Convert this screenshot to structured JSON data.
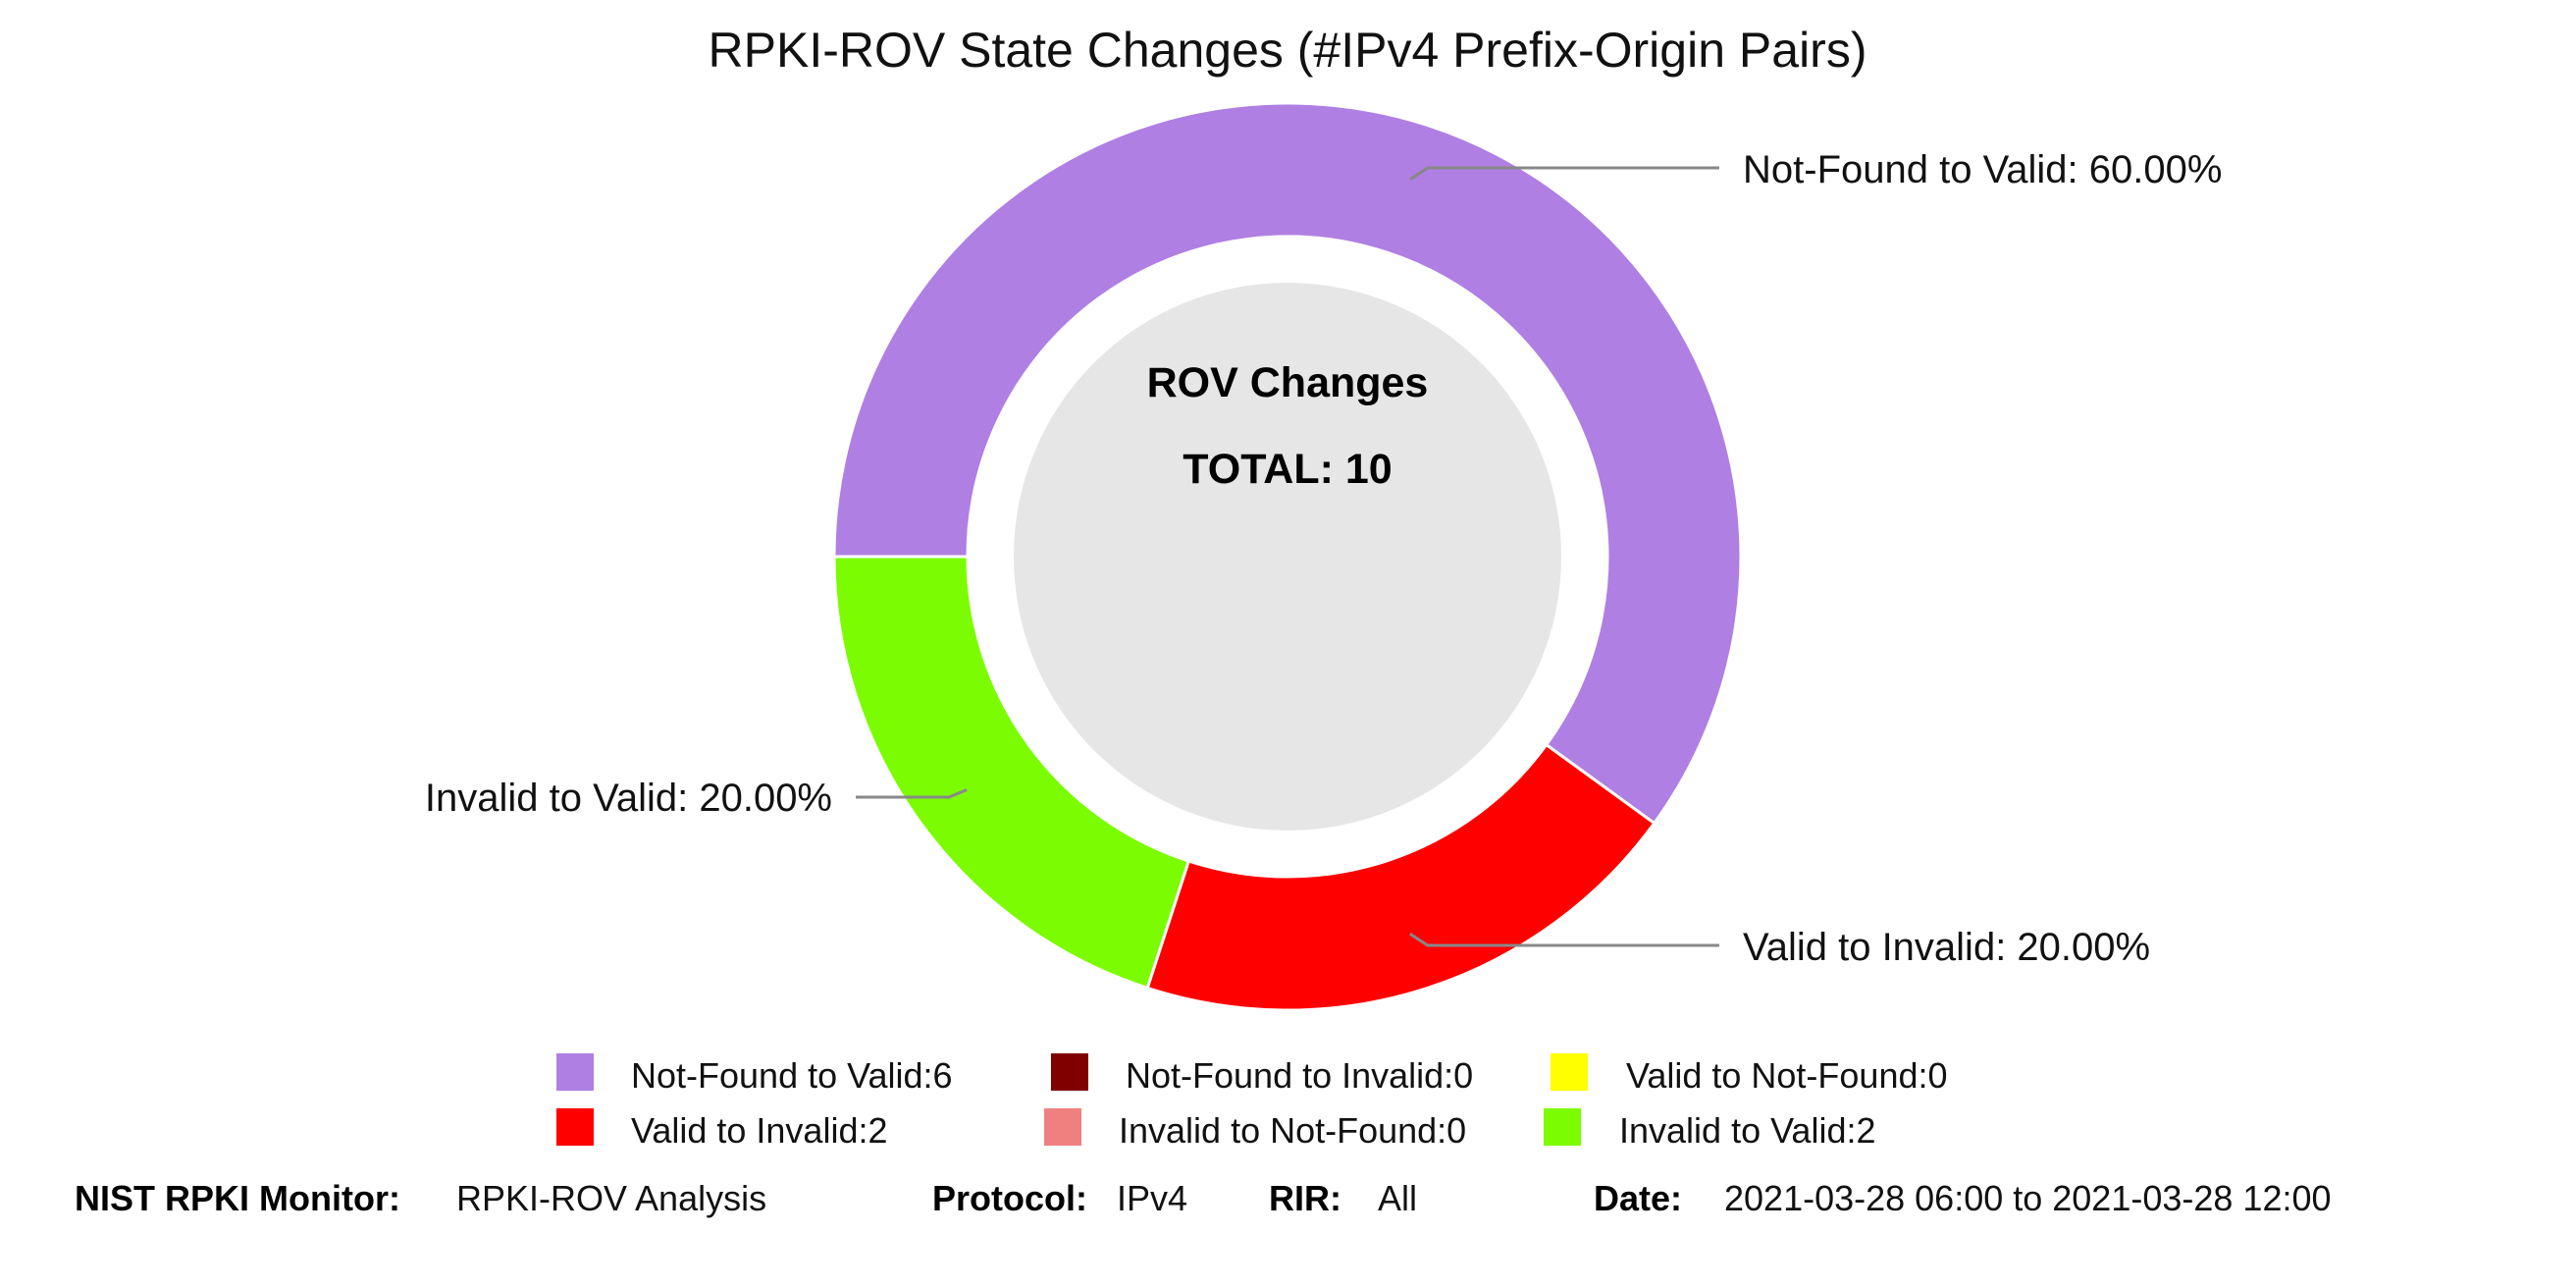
{
  "chart_data": {
    "type": "pie",
    "title": "RPKI-ROV State Changes (#IPv4 Prefix-Origin Pairs)",
    "center": {
      "heading": "ROV Changes",
      "total_label": "TOTAL: 10"
    },
    "slices": [
      {
        "name": "Not-Found to Valid",
        "value": 6,
        "percent_label": "Not-Found to Valid: 60.00%",
        "color": "#af7fe3"
      },
      {
        "name": "Valid to Invalid",
        "value": 2,
        "percent_label": "Valid to Invalid: 20.00%",
        "color": "#ff0000"
      },
      {
        "name": "Invalid to Valid",
        "value": 2,
        "percent_label": "Invalid to Valid: 20.00%",
        "color": "#7cfc00"
      }
    ],
    "legend": [
      {
        "label": "Not-Found to Valid:6",
        "color": "#af7fe3"
      },
      {
        "label": "Not-Found to Invalid:0",
        "color": "#800000"
      },
      {
        "label": "Valid to Not-Found:0",
        "color": "#ffff00"
      },
      {
        "label": "Valid to Invalid:2",
        "color": "#ff0000"
      },
      {
        "label": "Invalid to Not-Found:0",
        "color": "#f08080"
      },
      {
        "label": "Invalid to Valid:2",
        "color": "#7cfc00"
      }
    ],
    "legend_position": "bottom",
    "hole_color": "#e6e6e6"
  },
  "footer": {
    "monitor_key": "NIST RPKI Monitor:",
    "monitor_val": "RPKI-ROV Analysis",
    "protocol_key": "Protocol:",
    "protocol_val": "IPv4",
    "rir_key": "RIR:",
    "rir_val": "All",
    "date_key": "Date:",
    "date_val": "2021-03-28 06:00 to 2021-03-28 12:00"
  }
}
